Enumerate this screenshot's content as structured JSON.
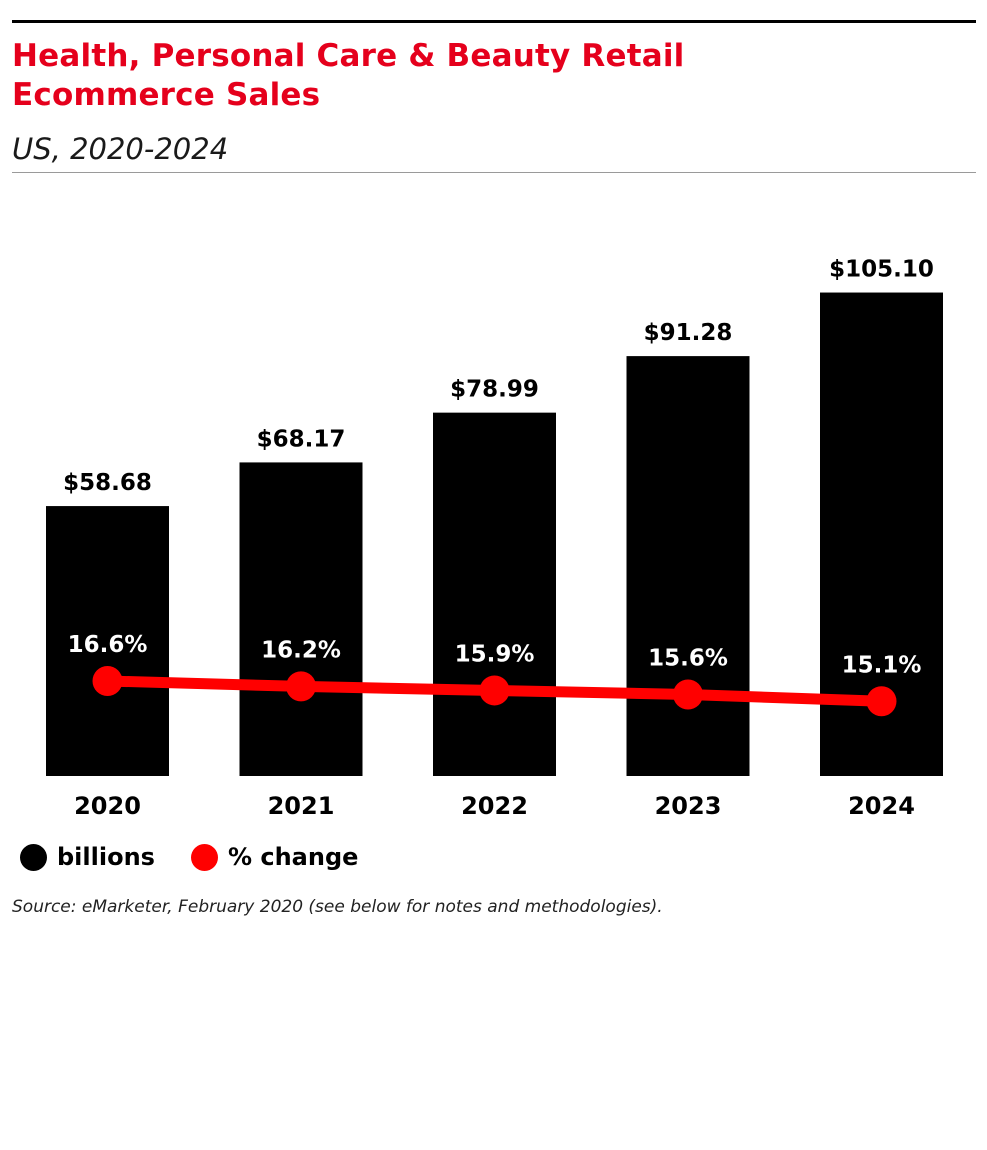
{
  "header": {
    "title_line1": "Health, Personal Care & Beauty Retail",
    "title_line2": "Ecommerce Sales",
    "subtitle": "US, 2020-2024"
  },
  "legend": {
    "billions_label": "billions",
    "change_label": "% change"
  },
  "source": "Source: eMarketer, February 2020 (see below for notes and methodologies).",
  "colors": {
    "bar": "#000000",
    "line": "#ff0000",
    "title": "#e5001c"
  },
  "chart_data": {
    "type": "bar",
    "title": "Health, Personal Care & Beauty Retail Ecommerce Sales",
    "subtitle": "US, 2020-2024",
    "categories": [
      "2020",
      "2021",
      "2022",
      "2023",
      "2024"
    ],
    "series": [
      {
        "name": "billions",
        "type": "bar",
        "values": [
          58.68,
          68.17,
          78.99,
          91.28,
          105.1
        ],
        "labels": [
          "$58.68",
          "$68.17",
          "$78.99",
          "$91.28",
          "$105.10"
        ]
      },
      {
        "name": "% change",
        "type": "line",
        "values": [
          16.6,
          16.2,
          15.9,
          15.6,
          15.1
        ],
        "labels": [
          "16.6%",
          "16.2%",
          "15.9%",
          "15.6%",
          "15.1%"
        ]
      }
    ],
    "xlabel": "",
    "ylabel": "",
    "ylim": [
      0,
      110
    ],
    "legend_position": "bottom-left",
    "grid": false
  }
}
